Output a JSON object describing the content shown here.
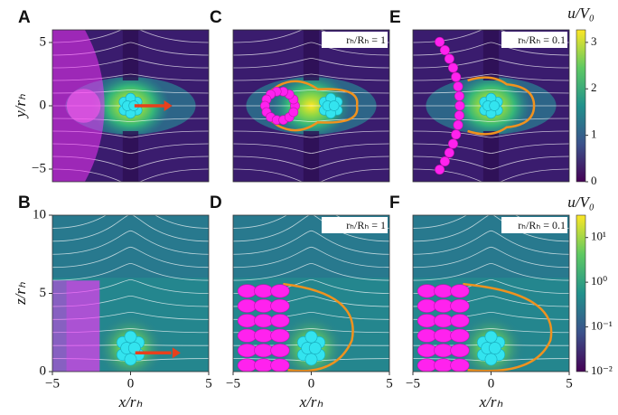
{
  "panels": [
    {
      "letter": "A",
      "ylabel": "y/rₕ",
      "xlim": [
        -6,
        6
      ],
      "ylim": [
        -6,
        6
      ],
      "yticks": [
        {
          "value": -5,
          "label": "−5"
        },
        0,
        5
      ]
    },
    {
      "letter": "C",
      "annotation": "rₕ/Rₕ = 1",
      "xlim": [
        -6,
        6
      ],
      "ylim": [
        -6,
        6
      ]
    },
    {
      "letter": "E",
      "annotation": "rₕ/Rₕ = 0.1",
      "xlim": [
        -6,
        6
      ],
      "ylim": [
        -6,
        6
      ]
    },
    {
      "letter": "B",
      "ylabel": "z/rₕ",
      "xlabel": "x/rₕ",
      "xlim": [
        -5,
        5
      ],
      "ylim": [
        0,
        10
      ],
      "xticks": [
        {
          "value": -5,
          "label": "−5"
        },
        0,
        5
      ],
      "yticks": [
        0,
        5,
        10
      ]
    },
    {
      "letter": "D",
      "annotation": "rₕ/Rₕ = 1",
      "xlabel": "x/rₕ",
      "xlim": [
        -5,
        5
      ],
      "ylim": [
        0,
        10
      ],
      "xticks": [
        {
          "value": -5,
          "label": "−5"
        },
        0,
        5
      ]
    },
    {
      "letter": "F",
      "annotation": "rₕ/Rₕ = 0.1",
      "xlabel": "x/rₕ",
      "xlim": [
        -5,
        5
      ],
      "ylim": [
        0,
        10
      ],
      "xticks": [
        {
          "value": -5,
          "label": "−5"
        },
        0,
        5
      ]
    }
  ],
  "colorbars": [
    {
      "label": "u/V₀",
      "lim": [
        0,
        3.27
      ],
      "ticks": [
        0,
        1,
        2,
        3
      ]
    },
    {
      "label": "u/V₀",
      "log": true,
      "lim": [
        0.01,
        31.6
      ],
      "ticks": [
        {
          "value": 0.01,
          "label": "10⁻²"
        },
        {
          "value": 0.1,
          "label": "10⁻¹"
        },
        {
          "value": 1,
          "label": "10⁰"
        },
        {
          "value": 10,
          "label": "10¹"
        }
      ]
    }
  ]
}
